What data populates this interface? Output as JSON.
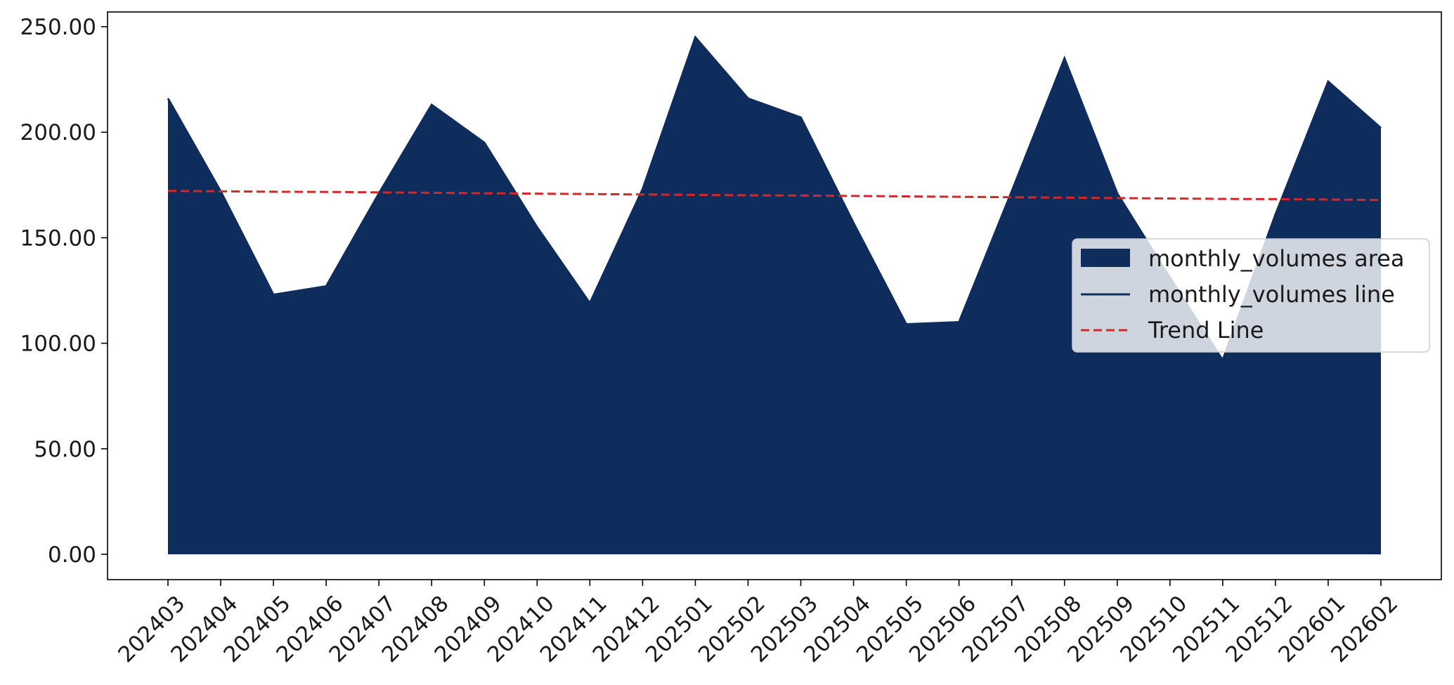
{
  "chart_data": {
    "type": "area",
    "title": "",
    "xlabel": "",
    "ylabel": "",
    "categories": [
      "202403",
      "202404",
      "202405",
      "202406",
      "202407",
      "202408",
      "202409",
      "202410",
      "202411",
      "202412",
      "202501",
      "202502",
      "202503",
      "202504",
      "202505",
      "202506",
      "202507",
      "202508",
      "202509",
      "202510",
      "202511",
      "202512",
      "202601",
      "202602"
    ],
    "series": [
      {
        "name": "monthly_volumes area",
        "kind": "area",
        "color": "#0f2d5c",
        "values": [
          216,
          172,
          123,
          127,
          171,
          213,
          195,
          155,
          119,
          173,
          245,
          216,
          207,
          157,
          109,
          110,
          172,
          235,
          171,
          131,
          92,
          161,
          224,
          202
        ]
      },
      {
        "name": "monthly_volumes line",
        "kind": "line",
        "color": "#0f2d5c",
        "values": [
          216,
          172,
          123,
          127,
          171,
          213,
          195,
          155,
          119,
          173,
          245,
          216,
          207,
          157,
          109,
          110,
          172,
          235,
          171,
          131,
          92,
          161,
          224,
          202
        ]
      },
      {
        "name": "Trend Line",
        "kind": "trend",
        "color": "#d62728",
        "dashed": true,
        "values": [
          172.2,
          172.0,
          171.8,
          171.7,
          171.5,
          171.3,
          171.1,
          170.9,
          170.7,
          170.5,
          170.3,
          170.1,
          170.0,
          169.8,
          169.6,
          169.4,
          169.2,
          169.0,
          168.8,
          168.6,
          168.4,
          168.3,
          168.1,
          167.9
        ]
      }
    ],
    "ylim": [
      -12,
      257
    ],
    "yticks": [
      0,
      50,
      100,
      150,
      200,
      250
    ],
    "ytick_labels": [
      "0.00",
      "50.00",
      "100.00",
      "150.00",
      "200.00",
      "250.00"
    ],
    "grid": false,
    "legend_position": "right"
  }
}
